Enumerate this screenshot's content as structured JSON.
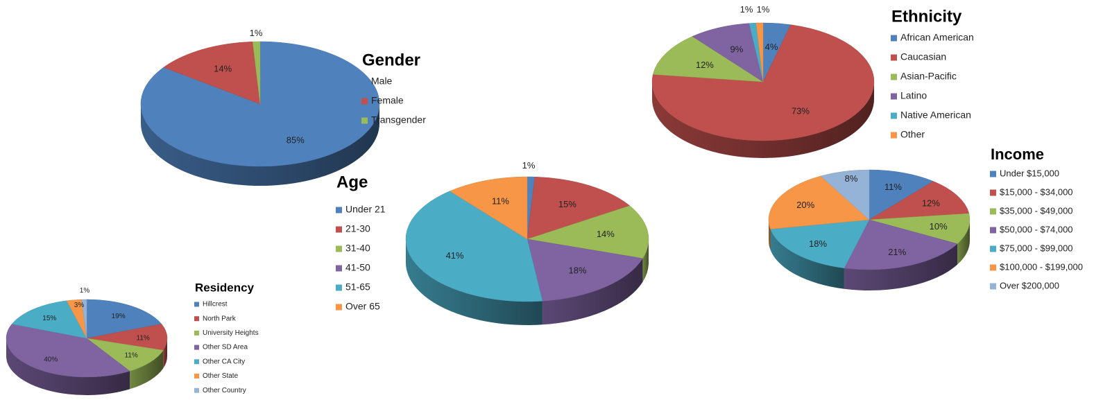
{
  "chart_data": [
    {
      "id": "gender",
      "type": "pie",
      "title": "Gender",
      "categories": [
        "Male",
        "Female",
        "Transgender"
      ],
      "values": [
        85,
        14,
        1
      ],
      "data_labels": [
        "85%",
        "14%",
        "1%"
      ],
      "colors": [
        "#4f81bd",
        "#c0504d",
        "#9bbb59"
      ],
      "start_angle": 0,
      "legend_placement": "right"
    },
    {
      "id": "ethnicity",
      "type": "pie",
      "title": "Ethnicity",
      "categories": [
        "African American",
        "Caucasian",
        "Asian-Pacific",
        "Latino",
        "Native American",
        "Other"
      ],
      "values": [
        4,
        73,
        12,
        9,
        1,
        1
      ],
      "data_labels": [
        "4%",
        "73%",
        "12%",
        "9%",
        "1%",
        "1%"
      ],
      "colors": [
        "#4f81bd",
        "#c0504d",
        "#9bbb59",
        "#8064a2",
        "#4bacc6",
        "#f79646"
      ],
      "start_angle": 0,
      "legend_placement": "right"
    },
    {
      "id": "age",
      "type": "pie",
      "title": "Age",
      "categories": [
        "Under 21",
        "21-30",
        "31-40",
        "41-50",
        "51-65",
        "Over 65"
      ],
      "values": [
        1,
        15,
        14,
        18,
        41,
        11
      ],
      "data_labels": [
        "1%",
        "15%",
        "14%",
        "18%",
        "41%",
        "11%"
      ],
      "colors": [
        "#4f81bd",
        "#c0504d",
        "#9bbb59",
        "#8064a2",
        "#4bacc6",
        "#f79646"
      ],
      "start_angle": 0,
      "legend_placement": "left"
    },
    {
      "id": "income",
      "type": "pie",
      "title": "Income",
      "categories": [
        "Under $15,000",
        "$15,000 - $34,000",
        "$35,000 - $49,000",
        "$50,000 - $74,000",
        "$75,000 - $99,000",
        "$100,000 - $199,000",
        "Over $200,000"
      ],
      "values": [
        11,
        12,
        10,
        21,
        18,
        20,
        8
      ],
      "data_labels": [
        "11%",
        "12%",
        "10%",
        "21%",
        "18%",
        "20%",
        "8%"
      ],
      "colors": [
        "#4f81bd",
        "#c0504d",
        "#9bbb59",
        "#8064a2",
        "#4bacc6",
        "#f79646",
        "#95b3d7"
      ],
      "start_angle": 0,
      "legend_placement": "right"
    },
    {
      "id": "residency",
      "type": "pie",
      "title": "Residency",
      "categories": [
        "Hillcrest",
        "North Park",
        "University Heights",
        "Other SD Area",
        "Other CA City",
        "Other State",
        "Other Country"
      ],
      "values": [
        19,
        11,
        11,
        40,
        15,
        3,
        1
      ],
      "data_labels": [
        "19%",
        "11%",
        "11%",
        "40%",
        "15%",
        "3%",
        "1%"
      ],
      "colors": [
        "#4f81bd",
        "#c0504d",
        "#9bbb59",
        "#8064a2",
        "#4bacc6",
        "#f79646",
        "#95b3d7"
      ],
      "start_angle": 0,
      "legend_placement": "right"
    }
  ]
}
